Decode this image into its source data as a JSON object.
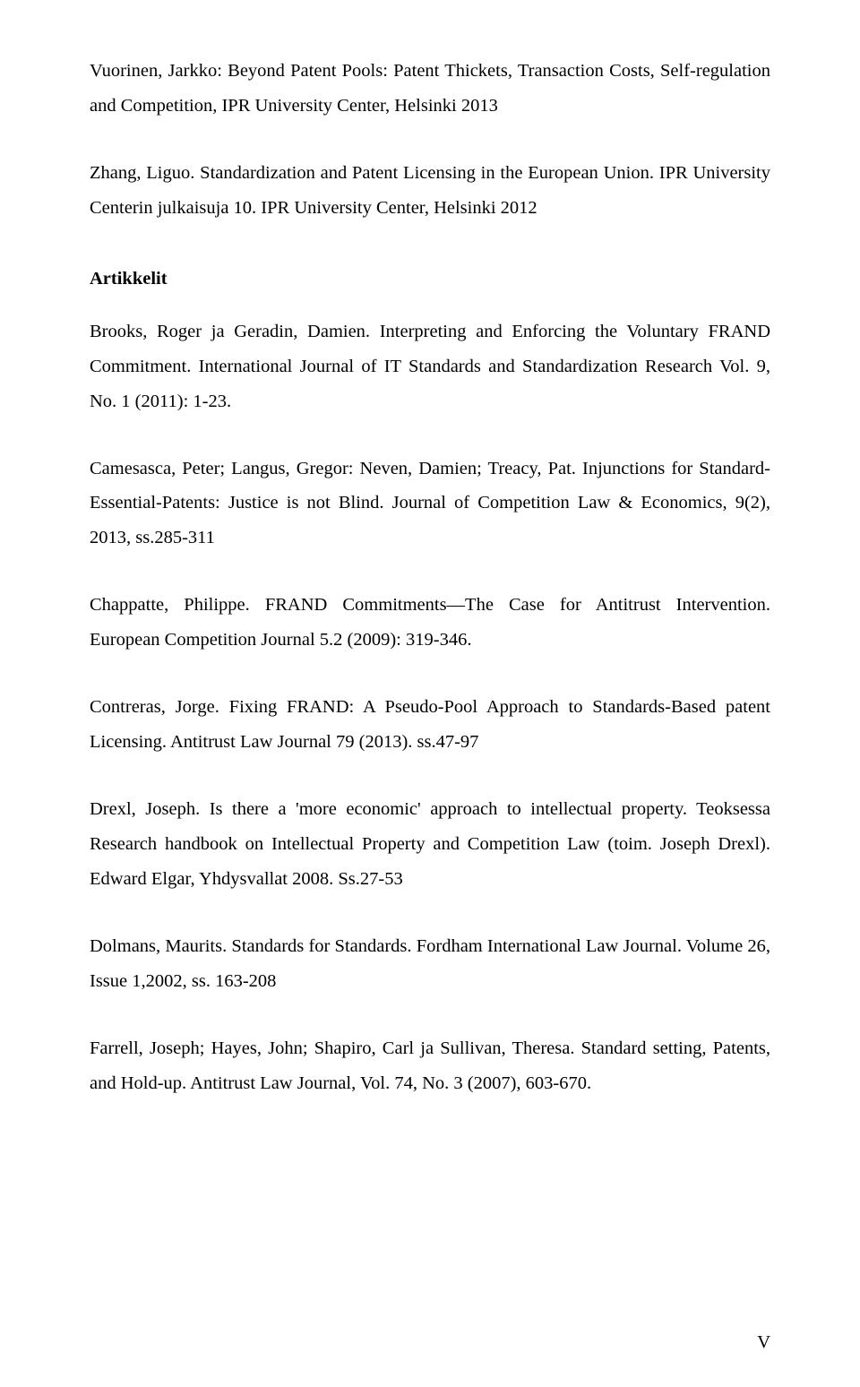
{
  "paragraphs": {
    "p1": "Vuorinen, Jarkko: Beyond Patent Pools: Patent Thickets, Transaction Costs, Self-regulation and Competition, IPR University Center, Helsinki 2013",
    "p2": "Zhang, Liguo. Standardization and Patent Licensing in the European Union. IPR University Centerin julkaisuja 10. IPR University Center, Helsinki 2012",
    "heading": "Artikkelit",
    "p3": "Brooks, Roger ja Geradin, Damien. Interpreting and Enforcing the Voluntary FRAND Commitment. International Journal of IT Standards and Standardization Research Vol. 9, No. 1 (2011): 1-23.",
    "p4": "Camesasca, Peter; Langus, Gregor: Neven, Damien; Treacy, Pat. Injunctions for Standard-Essential-Patents: Justice is not Blind. Journal of Competition Law & Economics, 9(2), 2013, ss.285-311",
    "p5": "Chappatte, Philippe. FRAND Commitments—The Case for Antitrust Intervention. European Competition Journal 5.2 (2009): 319-346.",
    "p6": "Contreras, Jorge. Fixing FRAND: A Pseudo-Pool Approach to Standards-Based patent Licensing. Antitrust Law Journal 79 (2013). ss.47-97",
    "p7": "Drexl, Joseph. Is there a 'more economic' approach to intellectual property. Teoksessa Research handbook on Intellectual Property and Competition Law (toim. Joseph Drexl). Edward Elgar, Yhdysvallat 2008. Ss.27-53",
    "p8": "Dolmans, Maurits.  Standards for Standards. Fordham International Law Journal. Volume 26, Issue 1,2002, ss. 163-208",
    "p9": "Farrell, Joseph; Hayes, John; Shapiro, Carl ja Sullivan, Theresa. Standard setting, Patents, and Hold-up. Antitrust Law Journal, Vol. 74, No. 3 (2007), 603-670."
  },
  "page_number": "V",
  "colors": {
    "background": "#ffffff",
    "text": "#000000"
  },
  "typography": {
    "font_family": "Times New Roman",
    "body_fontsize_pt": 15,
    "line_height": 1.9
  }
}
